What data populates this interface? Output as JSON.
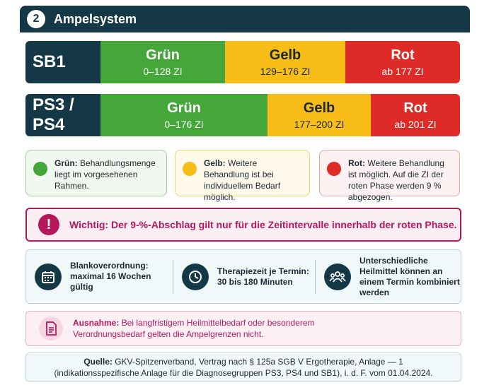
{
  "header": {
    "number": "2",
    "title": "Ampelsystem"
  },
  "rows": [
    {
      "label": "SB1",
      "segments": [
        {
          "name": "Grün",
          "range": "0–128 ZI",
          "color": "#45a63a"
        },
        {
          "name": "Gelb",
          "range": "129–176 ZI",
          "color": "#f8bd16"
        },
        {
          "name": "Rot",
          "range": "ab 177 ZI",
          "color": "#de2b27"
        }
      ]
    },
    {
      "label": "PS3 / PS4",
      "segments": [
        {
          "name": "Grün",
          "range": "0–176 ZI",
          "color": "#45a63a"
        },
        {
          "name": "Gelb",
          "range": "177–200 ZI",
          "color": "#f8bd16"
        },
        {
          "name": "Rot",
          "range": "ab 201 ZI",
          "color": "#de2b27"
        }
      ]
    }
  ],
  "legend": {
    "green": {
      "title": "Grün:",
      "text": "Behandlungsmenge liegt im vorgesehenen Rahmen."
    },
    "yellow": {
      "title": "Gelb:",
      "text": "Weitere Behandlung ist bei individuellem Bedarf möglich."
    },
    "red": {
      "title": "Rot:",
      "text": "Weitere Behandlung ist möglich. Auf die ZI der roten Phase werden 9 % abgezogen."
    }
  },
  "important": {
    "icon": "!",
    "text": "Wichtig: Der 9-%-Abschlag gilt nur für die Zeitintervalle innerhalb der roten Phase."
  },
  "info": {
    "item1_line1": "Blankoverordnung:",
    "item1_line2": "maximal 16 Wochen",
    "item1_line3": "gültig",
    "item2_line1": "Therapiezeit je Termin:",
    "item2_line2": "30 bis 180 Minuten",
    "item3_line1": "Unterschiedliche",
    "item3_line2": "Heilmittel können an",
    "item3_line3": "einem Termin kombiniert",
    "item3_line4": "werden"
  },
  "exception": {
    "title": "Ausnahme:",
    "line1": "Bei langfristigem Heilmittelbedarf oder besonderem",
    "line2": "Verordnungsbedarf gelten die Ampelgrenzen nicht."
  },
  "source": {
    "title": "Quelle:",
    "line1": "GKV-Spitzenverband, Vertrag nach § 125a SGB V Ergotherapie, Anlage — 1",
    "line2": "(indikationsspezifische Anlage für die Diagnosegruppen PS3, PS4 und SB1), i. d. F. vom 01.04.2024."
  },
  "icons": {
    "important": "exclamation-icon",
    "calendar": "calendar-icon",
    "clock": "clock-icon",
    "people": "people-icon",
    "document": "document-icon"
  }
}
